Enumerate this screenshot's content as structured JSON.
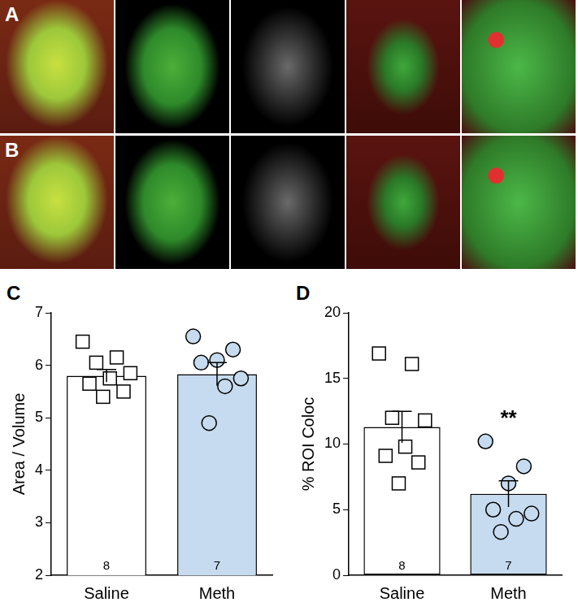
{
  "images": {
    "panel_labels": [
      "A",
      "B"
    ]
  },
  "chart_data": [
    {
      "type": "bar",
      "panel": "C",
      "y_label": "Area / Volume",
      "categories": [
        "Saline",
        "Meth"
      ],
      "values": [
        5.8,
        5.83
      ],
      "errors": [
        0.12,
        0.22
      ],
      "points": [
        [
          6.45,
          6.15,
          6.05,
          5.85,
          5.75,
          5.65,
          5.5,
          5.4
        ],
        [
          6.55,
          6.3,
          6.1,
          6.05,
          5.75,
          5.6,
          4.9
        ]
      ],
      "sample_sizes": [
        8,
        7
      ],
      "colors": [
        "#ffffff",
        "#c6dbef"
      ],
      "marker": [
        "square",
        "circle"
      ],
      "ylim": [
        2,
        7
      ],
      "yticks": [
        2,
        3,
        4,
        5,
        6,
        7
      ],
      "grid": false
    },
    {
      "type": "bar",
      "panel": "D",
      "y_label": "% ROI Coloc",
      "categories": [
        "Saline",
        "Meth"
      ],
      "values": [
        11.3,
        6.2
      ],
      "errors": [
        1.2,
        1.0
      ],
      "points": [
        [
          16.9,
          16.1,
          12.0,
          11.8,
          9.8,
          9.1,
          8.6,
          7.0
        ],
        [
          10.2,
          8.3,
          7.0,
          5.0,
          4.7,
          4.3,
          3.3
        ]
      ],
      "sample_sizes": [
        8,
        7
      ],
      "colors": [
        "#ffffff",
        "#c6dbef"
      ],
      "marker": [
        "square",
        "circle"
      ],
      "ylim": [
        0,
        20
      ],
      "yticks": [
        0,
        5,
        10,
        15,
        20
      ],
      "grid": false,
      "annotations": [
        {
          "text": "**",
          "category": "Meth"
        }
      ]
    }
  ]
}
